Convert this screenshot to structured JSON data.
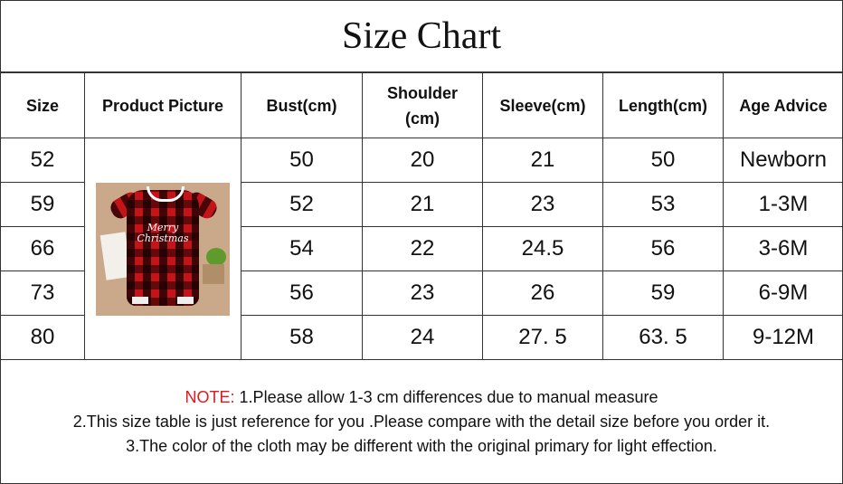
{
  "title": "Size Chart",
  "headers": [
    "Size",
    "Product Picture",
    "Bust(cm)",
    "Shoulder (cm)",
    "Sleeve(cm)",
    "Length(cm)",
    "Age Advice"
  ],
  "product_picture": {
    "print_text": "Merry Christmas",
    "colors": {
      "plaid_red": "#c4141a",
      "background": "#c9a98a"
    }
  },
  "rows": [
    {
      "size": "52",
      "bust": "50",
      "shoulder": "20",
      "sleeve": "21",
      "length": "50",
      "age": "Newborn"
    },
    {
      "size": "59",
      "bust": "52",
      "shoulder": "21",
      "sleeve": "23",
      "length": "53",
      "age": "1-3M"
    },
    {
      "size": "66",
      "bust": "54",
      "shoulder": "22",
      "sleeve": "24.5",
      "length": "56",
      "age": "3-6M"
    },
    {
      "size": "73",
      "bust": "56",
      "shoulder": "23",
      "sleeve": "26",
      "length": "59",
      "age": "6-9M"
    },
    {
      "size": "80",
      "bust": "58",
      "shoulder": "24",
      "sleeve": "27. 5",
      "length": "63. 5",
      "age": "9-12M"
    }
  ],
  "notes": {
    "label": "NOTE:",
    "label_color": "#e0191f",
    "line1": " 1.Please allow 1-3 cm differences due to manual measure",
    "line2": "2.This size table is just reference for you .Please compare with the detail size before you order  it.",
    "line3": "3.The color of the cloth may be different with the original primary for light effection."
  }
}
